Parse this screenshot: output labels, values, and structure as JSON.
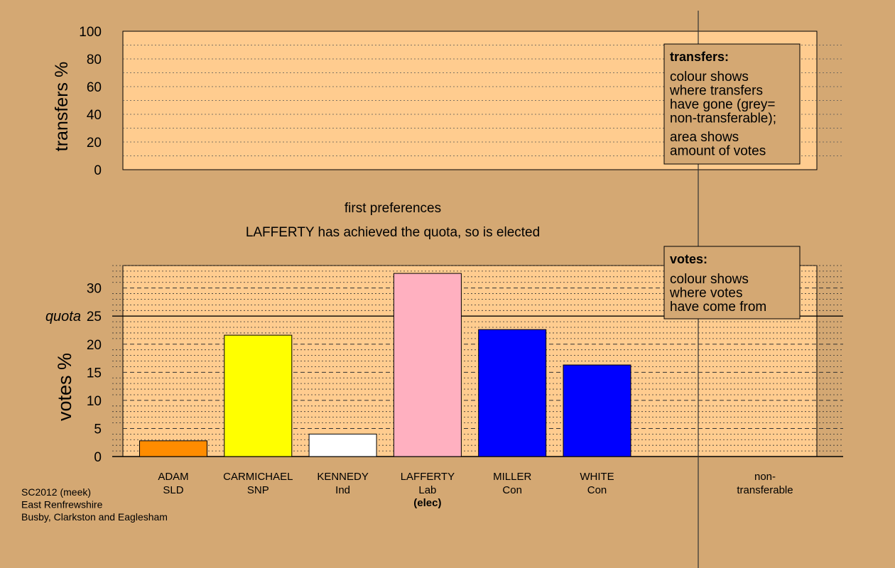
{
  "chart_data": [
    {
      "type": "bar",
      "panel": "transfers",
      "ylabel": "transfers %",
      "ylim": [
        0,
        100
      ],
      "yticks": [
        0,
        20,
        40,
        60,
        80,
        100
      ],
      "values": [],
      "legend": {
        "title": "transfers:",
        "lines1": [
          "colour shows",
          "where transfers",
          "have gone (grey=",
          "non-transferable);"
        ],
        "lines2": [
          "area shows",
          "amount of votes"
        ]
      }
    },
    {
      "type": "bar",
      "panel": "votes",
      "ylabel": "votes %",
      "ylim": [
        0,
        34
      ],
      "yticks": [
        0,
        5,
        10,
        15,
        20,
        25,
        30
      ],
      "quota": {
        "label": "quota",
        "value": 25
      },
      "categories": [
        {
          "name": "ADAM",
          "party": "SLD",
          "value": 2.8,
          "color": "#ff8c00",
          "note": ""
        },
        {
          "name": "CARMICHAEL",
          "party": "SNP",
          "value": 21.6,
          "color": "#ffff00",
          "note": ""
        },
        {
          "name": "KENNEDY",
          "party": "Ind",
          "value": 4.0,
          "color": "#ffffff",
          "note": ""
        },
        {
          "name": "LAFFERTY",
          "party": "Lab",
          "value": 32.6,
          "color": "#ffb0c0",
          "note": "(elec)"
        },
        {
          "name": "MILLER",
          "party": "Con",
          "value": 22.6,
          "color": "#0000ff",
          "note": ""
        },
        {
          "name": "WHITE",
          "party": "Con",
          "value": 16.3,
          "color": "#0000ff",
          "note": ""
        }
      ],
      "nontransferable": {
        "line1": "non-",
        "line2": "transferable"
      },
      "legend": {
        "title": "votes:",
        "lines1": [
          "colour shows",
          "where votes",
          "have come from"
        ]
      }
    }
  ],
  "stage": {
    "title": "first preferences",
    "subtitle": "LAFFERTY has achieved the quota, so is elected"
  },
  "footer": [
    "SC2012 (meek)",
    "East Renfrewshire",
    "Busby, Clarkston and Eaglesham"
  ],
  "colors": {
    "background": "#d4a873",
    "plot_area": "#ffcc8f"
  }
}
